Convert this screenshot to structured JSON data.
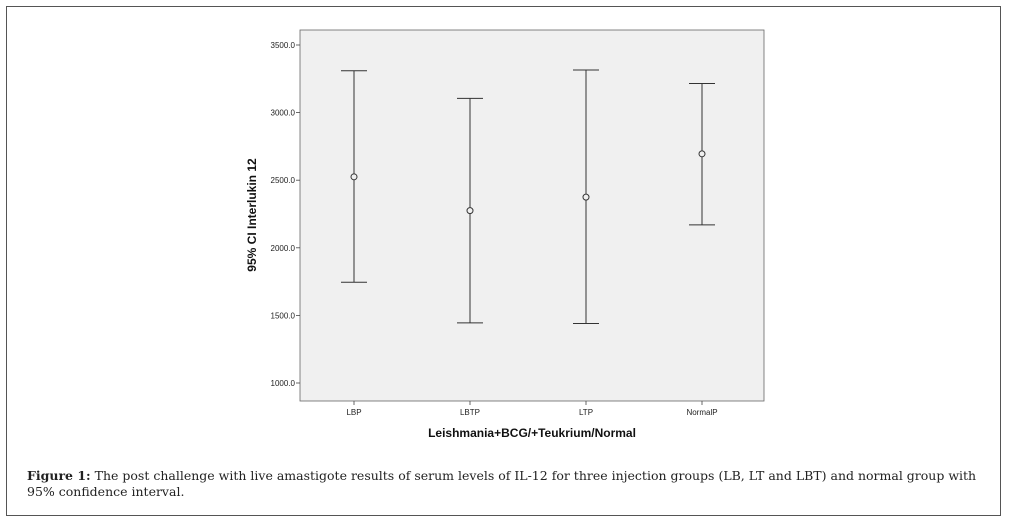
{
  "chart_data": {
    "type": "errorbar",
    "xlabel": "Leishmania+BCG/+Teukrium/Normal",
    "ylabel": "95% CI Interlukin 12",
    "ylim": [
      900,
      3600
    ],
    "yticks": [
      "3500.0",
      "3000.0",
      "2500.0",
      "2000.0",
      "1500.0",
      "1000.0"
    ],
    "ytick_values": [
      3500,
      3000,
      2500,
      2000,
      1500,
      1000
    ],
    "categories": [
      "LBP",
      "LBTP",
      "LTP",
      "NormalP"
    ],
    "mean": [
      2525,
      2275,
      2375,
      2695
    ],
    "upper": [
      3310,
      3105,
      3315,
      3215
    ],
    "lower": [
      1745,
      1445,
      1440,
      2170
    ],
    "background": "#f0f0f0",
    "grid": false
  },
  "caption": {
    "label": "Figure 1:",
    "text": "The post challenge with live amastigote results of serum levels of IL-12 for three injection groups (LB, LT and LBT) and normal group with 95% confidence interval."
  }
}
